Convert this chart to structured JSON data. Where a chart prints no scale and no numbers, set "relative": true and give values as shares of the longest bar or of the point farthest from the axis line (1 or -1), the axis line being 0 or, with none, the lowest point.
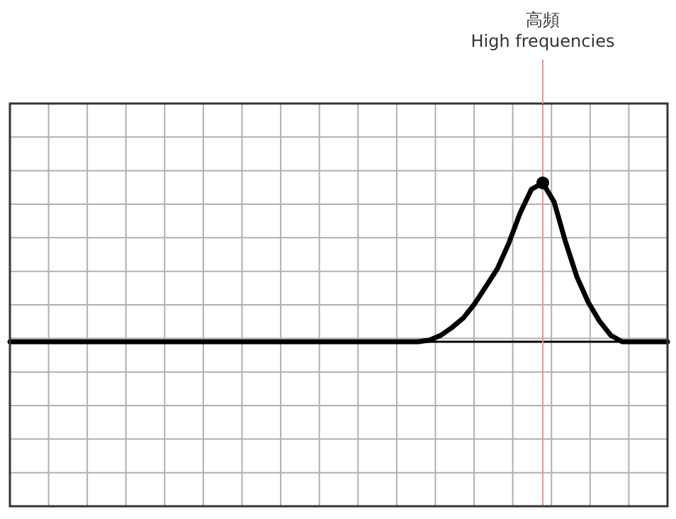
{
  "chart_data": {
    "type": "line",
    "relative": true,
    "categories": [
      null,
      null,
      null,
      null,
      null,
      null,
      null,
      null,
      null,
      null,
      null,
      null,
      null,
      null,
      null,
      null,
      null,
      null,
      null,
      null,
      null,
      null,
      null,
      null,
      null,
      null,
      null,
      null,
      null,
      null,
      null,
      null,
      null,
      null,
      null,
      null,
      null,
      null,
      null,
      null,
      null,
      null,
      null,
      null,
      null,
      null,
      null,
      null,
      null,
      null,
      null,
      null,
      null,
      null,
      null,
      null,
      null,
      null,
      null
    ],
    "series": [
      {
        "color": "#000000",
        "values": [
          0,
          0,
          0,
          0,
          0,
          0,
          0,
          0,
          0,
          0,
          0,
          0,
          0,
          0,
          0,
          0,
          0,
          0,
          0,
          0,
          0,
          0,
          0,
          0,
          0,
          0,
          0,
          0,
          0,
          0,
          0,
          0,
          0,
          0,
          0,
          0,
          0,
          0.01,
          0.04,
          0.09,
          0.15,
          0.24,
          0.35,
          0.46,
          0.62,
          0.81,
          0.96,
          1,
          0.88,
          0.63,
          0.41,
          0.25,
          0.13,
          0.04,
          0,
          0,
          0,
          0,
          0
        ]
      }
    ],
    "annotations": [
      "高頻",
      "High frequencies"
    ],
    "grid": true
  }
}
